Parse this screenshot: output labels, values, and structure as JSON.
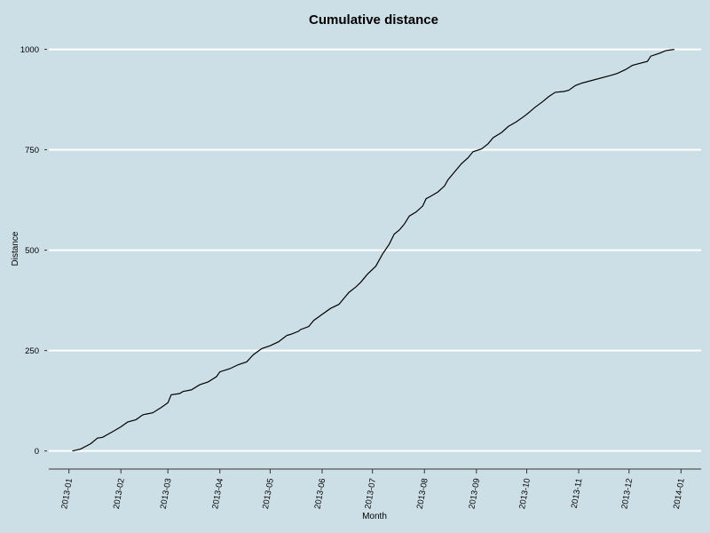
{
  "chart_data": {
    "type": "line",
    "title": "Cumulative distance",
    "xlabel": "Month",
    "ylabel": "Distance",
    "x_axis_type": "date",
    "xlim": [
      "2012-12-20",
      "2014-01-13"
    ],
    "ylim": [
      -45,
      1030
    ],
    "grid": "horizontal",
    "background": "#cddfe6",
    "line_color": "#000000",
    "y_ticks": [
      0,
      250,
      500,
      750,
      1000
    ],
    "x_ticks": [
      "2013-01-01",
      "2013-02-01",
      "2013-03-01",
      "2013-04-01",
      "2013-05-01",
      "2013-06-01",
      "2013-07-01",
      "2013-08-01",
      "2013-09-01",
      "2013-10-01",
      "2013-11-01",
      "2013-12-01",
      "2014-01-01"
    ],
    "x_tick_labels": [
      "2013-01",
      "2013-02",
      "2013-03",
      "2013-04",
      "2013-05",
      "2013-06",
      "2013-07",
      "2013-08",
      "2013-09",
      "2013-10",
      "2013-11",
      "2013-12",
      "2014-01"
    ],
    "series": [
      {
        "x": [
          "2013-01-03",
          "2013-01-08",
          "2013-01-14",
          "2013-01-18",
          "2013-01-21",
          "2013-01-27",
          "2013-02-01",
          "2013-02-05",
          "2013-02-10",
          "2013-02-14",
          "2013-02-16",
          "2013-02-20",
          "2013-02-25",
          "2013-03-01",
          "2013-03-03",
          "2013-03-08",
          "2013-03-10",
          "2013-03-15",
          "2013-03-20",
          "2013-03-25",
          "2013-03-30",
          "2013-04-01",
          "2013-04-07",
          "2013-04-12",
          "2013-04-17",
          "2013-04-21",
          "2013-04-26",
          "2013-05-01",
          "2013-05-06",
          "2013-05-11",
          "2013-05-13",
          "2013-05-18",
          "2013-05-19",
          "2013-05-24",
          "2013-05-27",
          "2013-06-01",
          "2013-06-06",
          "2013-06-11",
          "2013-06-14",
          "2013-06-17",
          "2013-06-21",
          "2013-06-24",
          "2013-06-28",
          "2013-07-03",
          "2013-07-07",
          "2013-07-11",
          "2013-07-14",
          "2013-07-17",
          "2013-07-20",
          "2013-07-23",
          "2013-07-27",
          "2013-07-31",
          "2013-08-02",
          "2013-08-05",
          "2013-08-09",
          "2013-08-13",
          "2013-08-15",
          "2013-08-19",
          "2013-08-23",
          "2013-08-27",
          "2013-08-30",
          "2013-09-04",
          "2013-09-08",
          "2013-09-11",
          "2013-09-16",
          "2013-09-20",
          "2013-09-25",
          "2013-09-30",
          "2013-10-03",
          "2013-10-06",
          "2013-10-10",
          "2013-10-14",
          "2013-10-18",
          "2013-10-23",
          "2013-10-26",
          "2013-10-30",
          "2013-11-03",
          "2013-11-20",
          "2013-11-24",
          "2013-11-29",
          "2013-12-03",
          "2013-12-12",
          "2013-12-14",
          "2013-12-19",
          "2013-12-23",
          "2013-12-28"
        ],
        "y": [
          0,
          5,
          18,
          32,
          34,
          48,
          60,
          72,
          78,
          90,
          92,
          95,
          108,
          120,
          140,
          143,
          148,
          152,
          165,
          172,
          185,
          197,
          205,
          215,
          222,
          240,
          255,
          262,
          272,
          288,
          290,
          298,
          302,
          310,
          325,
          340,
          355,
          365,
          380,
          395,
          408,
          420,
          440,
          460,
          490,
          515,
          540,
          550,
          565,
          585,
          595,
          610,
          628,
          635,
          645,
          660,
          675,
          695,
          715,
          730,
          745,
          752,
          765,
          780,
          793,
          808,
          820,
          835,
          845,
          856,
          868,
          882,
          893,
          895,
          898,
          910,
          916,
          935,
          940,
          950,
          960,
          970,
          983,
          990,
          997,
          1000
        ]
      }
    ]
  }
}
